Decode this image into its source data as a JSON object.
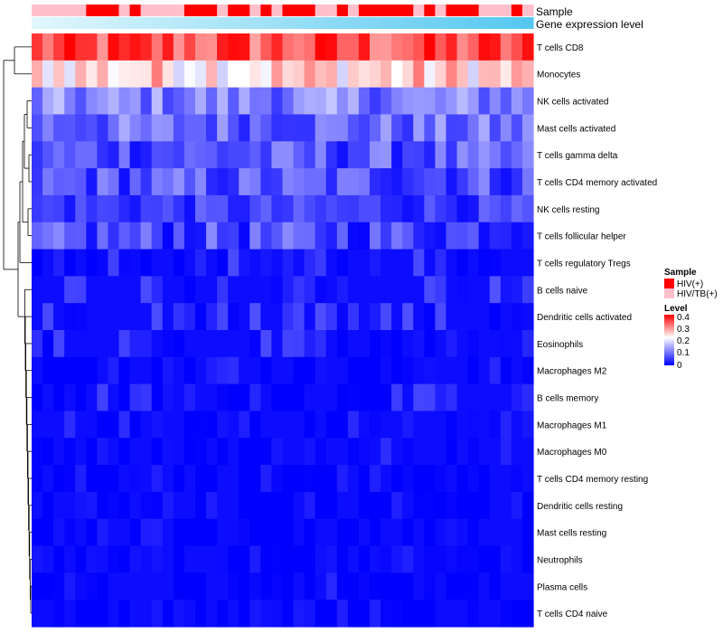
{
  "chart_data": {
    "type": "heatmap",
    "title": "",
    "annotation_rows": [
      {
        "name": "Sample",
        "label": "Sample"
      },
      {
        "name": "Gene expression level",
        "label": "Gene expression level"
      }
    ],
    "row_labels": [
      "T cells CD8",
      "Monocytes",
      "NK cells activated",
      "Mast cells activated",
      "T cells gamma delta",
      "T cells CD4 memory activated",
      "NK cells resting",
      "T cells follicular helper",
      "T cells regulatory  Tregs",
      "B cells naive",
      "Dendritic cells activated",
      "Eosinophils",
      "Macrophages M2",
      "B cells memory",
      "Macrophages M1",
      "Macrophages M0",
      "T cells CD4 memory resting",
      "Dendritic cells resting",
      "Mast cells resting",
      "Neutrophils",
      "Plasma cells",
      "T cells CD4 naive"
    ],
    "n_columns": 46,
    "sample_groups": [
      "pink",
      "pink",
      "pink",
      "pink",
      "pink",
      "red",
      "red",
      "red",
      "pink",
      "red",
      "pink",
      "pink",
      "pink",
      "pink",
      "red",
      "red",
      "red",
      "pink",
      "red",
      "red",
      "pink",
      "red",
      "pink",
      "red",
      "red",
      "red",
      "pink",
      "pink",
      "red",
      "pink",
      "red",
      "red",
      "red",
      "red",
      "red",
      "pink",
      "red",
      "pink",
      "red",
      "red",
      "red",
      "pink",
      "pink",
      "pink",
      "red",
      "pink"
    ],
    "row_means": [
      0.34,
      0.25,
      0.11,
      0.09,
      0.07,
      0.07,
      0.05,
      0.06,
      0.03,
      0.04,
      0.03,
      0.025,
      0.02,
      0.02,
      0.015,
      0.015,
      0.005,
      0.005,
      0.002,
      0.002,
      0.01,
      0.005
    ],
    "color_scale": {
      "min": 0,
      "max": 0.4,
      "low": "#0000FF",
      "mid": "#FFFFFF",
      "high": "#FF0000",
      "mid_value": 0.22
    },
    "legends": {
      "sample": {
        "title": "Sample",
        "items": [
          {
            "label": "HIV(+)",
            "color": "#FF0000"
          },
          {
            "label": "HIV/TB(+)",
            "color": "#FFC0CB"
          }
        ]
      },
      "level": {
        "title": "Level",
        "ticks": [
          "0.4",
          "0.3",
          "0.2",
          "0.1",
          "0"
        ]
      }
    },
    "dendrogram": "rows"
  }
}
